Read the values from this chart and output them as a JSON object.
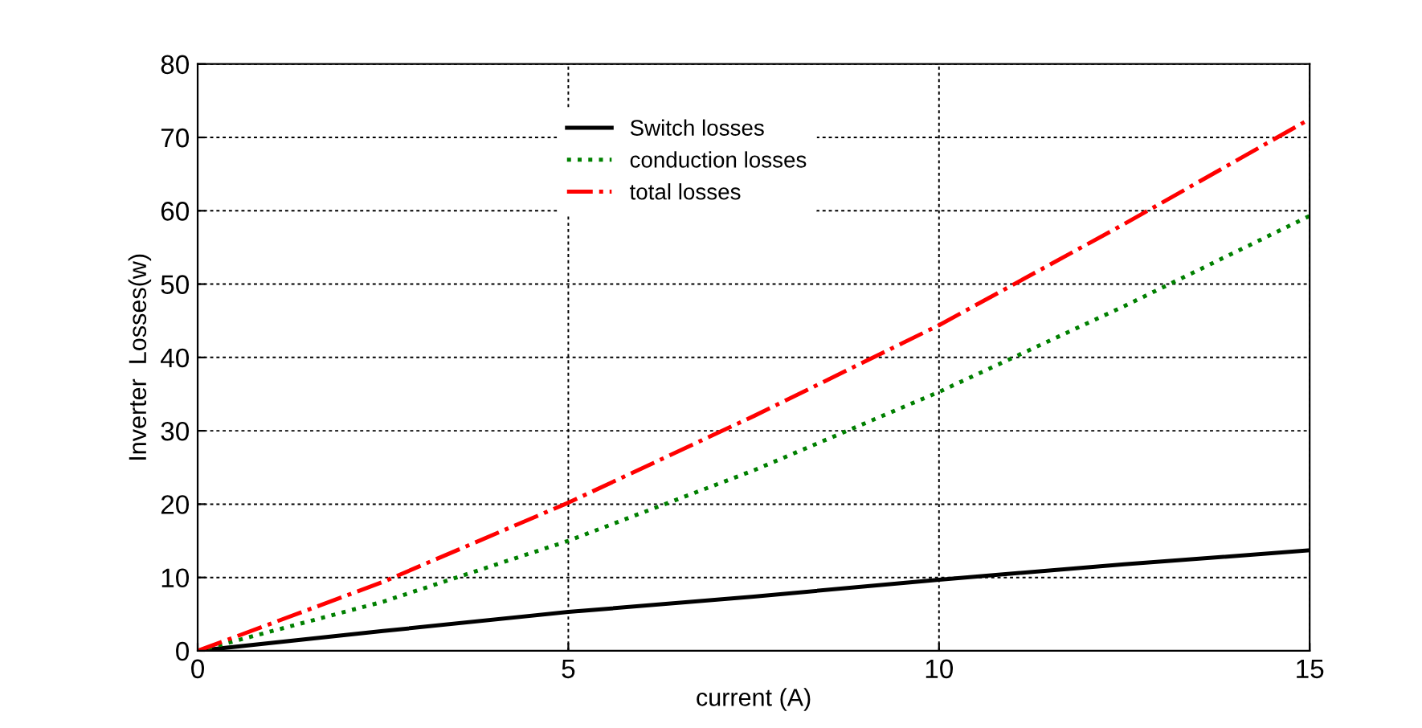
{
  "chart_data": {
    "type": "line",
    "xlabel": "current (A)",
    "ylabel": "Inverter  Losses(w)",
    "x": [
      0,
      2.5,
      5,
      7.5,
      10,
      12.5,
      15
    ],
    "series": [
      {
        "name": "Switch losses",
        "color": "#000000",
        "line_style": "solid",
        "values": [
          0,
          2.7,
          5.3,
          7.4,
          9.7,
          11.8,
          13.7
        ]
      },
      {
        "name": "conduction losses",
        "color": "#008000",
        "line_style": "dotted",
        "values": [
          0,
          6.7,
          15,
          24.6,
          35.3,
          47,
          59.3
        ]
      },
      {
        "name": "total losses",
        "color": "#ff0000",
        "line_style": "dashdot",
        "values": [
          0,
          9.4,
          20.2,
          32,
          44.4,
          58.2,
          72.5
        ]
      }
    ],
    "xlim": [
      0,
      15
    ],
    "xticks": [
      0,
      5,
      10,
      15
    ],
    "ylim": [
      0,
      80
    ],
    "yticks": [
      0,
      10,
      20,
      30,
      40,
      50,
      60,
      70,
      80
    ],
    "grid": true,
    "legend": "top",
    "marker": "none"
  }
}
